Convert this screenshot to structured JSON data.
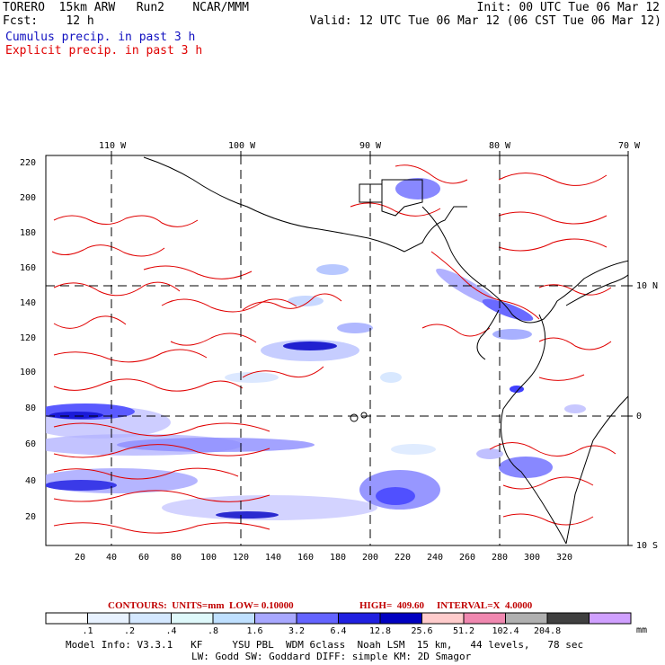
{
  "header": {
    "model_line": "TORERO  15km ARW   Run2    NCAR/MMM",
    "init": "Init: 00 UTC Tue 06 Mar 12",
    "fcst_label": "Fcst:    12 h",
    "valid": "Valid: 12 UTC Tue 06 Mar 12 (06 CST Tue 06 Mar 12)",
    "cumulus_title": "Cumulus precip. in past 3 h",
    "explicit_title": "Explicit precip. in past 3 h",
    "cumulus_color": "#1010c0",
    "explicit_color": "#e00000"
  },
  "map": {
    "top_labels": [
      "110 W",
      "100 W",
      "90 W",
      "80 W",
      "70 W"
    ],
    "right_labels": [
      "10 N",
      "0",
      "10 S"
    ],
    "y_ticks": [
      "20",
      "40",
      "60",
      "80",
      "100",
      "120",
      "140",
      "160",
      "180",
      "200",
      "220"
    ],
    "x_ticks": [
      "20",
      "40",
      "60",
      "80",
      "100",
      "120",
      "140",
      "160",
      "180",
      "200",
      "220",
      "240",
      "260",
      "280",
      "300",
      "320"
    ]
  },
  "contours_info": {
    "units": "CONTOURS:  UNITS=mm  LOW= 0.10000",
    "high": "HIGH=  409.60",
    "interval": "INTERVAL=X  4.0000"
  },
  "colorbar": {
    "labels": [
      ".1",
      ".2",
      ".4",
      ".8",
      "1.6",
      "3.2",
      "6.4",
      "12.8",
      "25.6",
      "51.2",
      "102.4",
      "204.8"
    ],
    "unit": "mm",
    "colors": [
      "#ffffff",
      "#e8f2ff",
      "#d4e8ff",
      "#dff9fb",
      "#bfe0ff",
      "#a8a8ff",
      "#6464ff",
      "#2020e0",
      "#0000c0",
      "#ffcccc",
      "#f088b0",
      "#b0b0b0",
      "#404040",
      "#d0a0ff"
    ]
  },
  "footer": {
    "line1": "Model Info: V3.3.1   KF     YSU PBL  WDM 6class  Noah LSM  15 km,   44 levels,   78 sec",
    "line2": "LW: Godd SW: Goddard DIFF: simple KM: 2D Smagor"
  }
}
